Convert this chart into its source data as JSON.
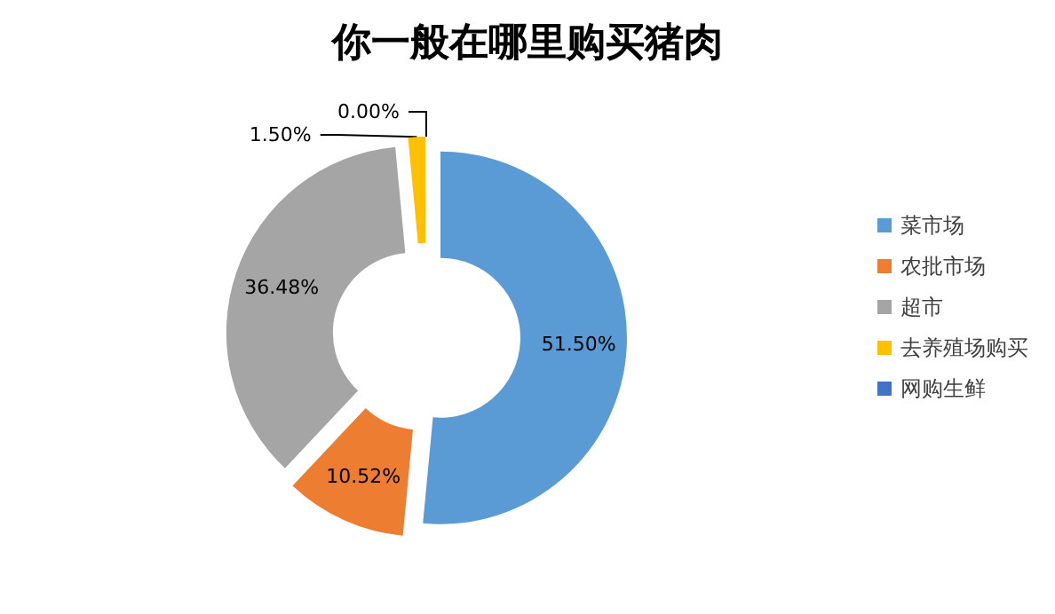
{
  "chart_data": {
    "type": "donut",
    "title": "你一般在哪里购买猪肉",
    "categories": [
      "菜市场",
      "农批市场",
      "超市",
      "去养殖场购买",
      "网购生鲜"
    ],
    "values": [
      51.5,
      10.52,
      36.48,
      1.5,
      0.0
    ],
    "value_labels": [
      "51.50%",
      "10.52%",
      "36.48%",
      "1.50%",
      "0.00%"
    ],
    "colors": [
      "#5b9bd5",
      "#ed7d31",
      "#a5a5a5",
      "#ffc000",
      "#4472c4"
    ],
    "legend": "right"
  }
}
